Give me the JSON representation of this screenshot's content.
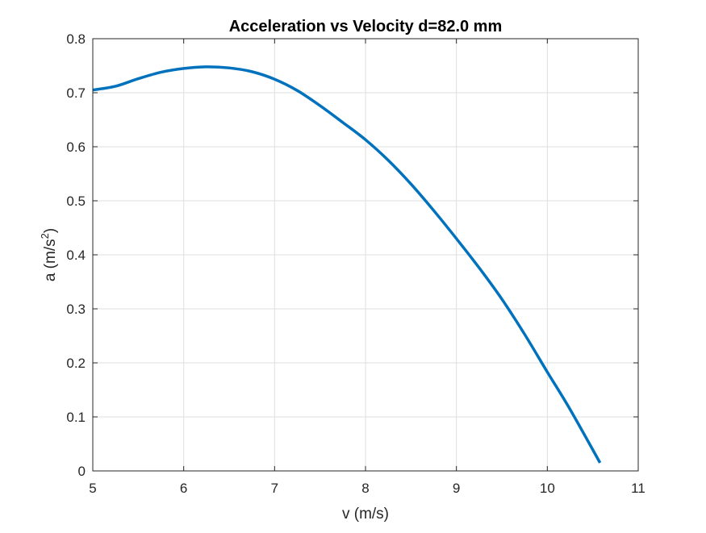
{
  "chart_data": {
    "type": "line",
    "title": "Acceleration vs Velocity d=82.0 mm",
    "xlabel": "v (m/s)",
    "ylabel_base": "a (m/s",
    "ylabel_sup": "2",
    "ylabel_end": ")",
    "xlim": [
      5,
      11
    ],
    "ylim": [
      0,
      0.8
    ],
    "xticks": [
      5,
      6,
      7,
      8,
      9,
      10,
      11
    ],
    "yticks": [
      0,
      0.1,
      0.2,
      0.3,
      0.4,
      0.5,
      0.6,
      0.7,
      0.8
    ],
    "xtick_labels": [
      "5",
      "6",
      "7",
      "8",
      "9",
      "10",
      "11"
    ],
    "ytick_labels": [
      "0",
      "0.1",
      "0.2",
      "0.3",
      "0.4",
      "0.5",
      "0.6",
      "0.7",
      "0.8"
    ],
    "grid": true,
    "series": [
      {
        "color": "#0072bd",
        "x": [
          5.0,
          5.25,
          5.5,
          5.75,
          6.0,
          6.25,
          6.5,
          6.75,
          7.0,
          7.25,
          7.5,
          7.75,
          8.0,
          8.25,
          8.5,
          8.75,
          9.0,
          9.25,
          9.5,
          9.75,
          10.0,
          10.25,
          10.58
        ],
        "y": [
          0.705,
          0.712,
          0.726,
          0.738,
          0.745,
          0.748,
          0.746,
          0.739,
          0.725,
          0.704,
          0.676,
          0.645,
          0.613,
          0.575,
          0.531,
          0.482,
          0.43,
          0.376,
          0.318,
          0.253,
          0.183,
          0.114,
          0.015
        ]
      }
    ]
  }
}
